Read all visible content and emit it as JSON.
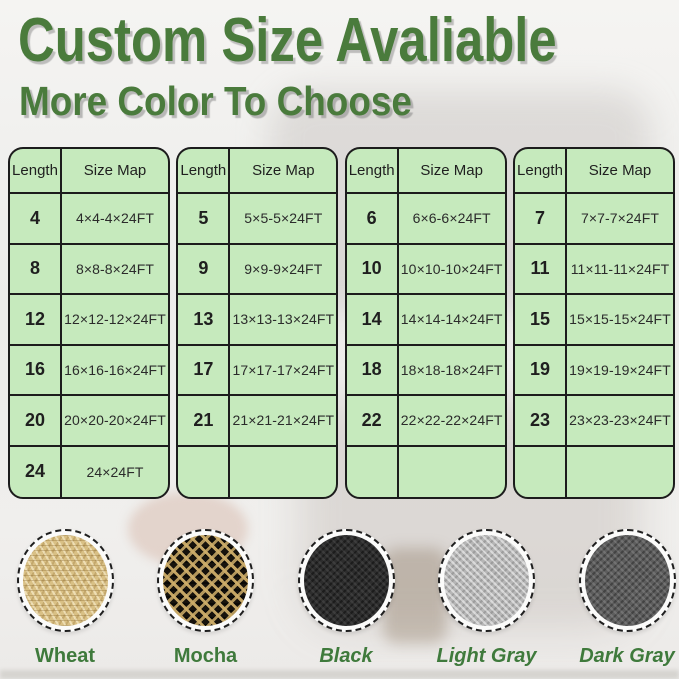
{
  "header": {
    "title": "Custom Size Avaliable",
    "subtitle": "More Color To Choose"
  },
  "size_tables": [
    {
      "columns": [
        "Length",
        "Size Map"
      ],
      "rows": [
        [
          "4",
          "4×4-4×24FT"
        ],
        [
          "8",
          "8×8-8×24FT"
        ],
        [
          "12",
          "12×12-12×24FT"
        ],
        [
          "16",
          "16×16-16×24FT"
        ],
        [
          "20",
          "20×20-20×24FT"
        ],
        [
          "24",
          "24×24FT"
        ]
      ]
    },
    {
      "columns": [
        "Length",
        "Size Map"
      ],
      "rows": [
        [
          "5",
          "5×5-5×24FT"
        ],
        [
          "9",
          "9×9-9×24FT"
        ],
        [
          "13",
          "13×13-13×24FT"
        ],
        [
          "17",
          "17×17-17×24FT"
        ],
        [
          "21",
          "21×21-21×24FT"
        ],
        [
          "",
          ""
        ]
      ]
    },
    {
      "columns": [
        "Length",
        "Size Map"
      ],
      "rows": [
        [
          "6",
          "6×6-6×24FT"
        ],
        [
          "10",
          "10×10-10×24FT"
        ],
        [
          "14",
          "14×14-14×24FT"
        ],
        [
          "18",
          "18×18-18×24FT"
        ],
        [
          "22",
          "22×22-22×24FT"
        ],
        [
          "",
          ""
        ]
      ]
    },
    {
      "columns": [
        "Length",
        "Size Map"
      ],
      "rows": [
        [
          "7",
          "7×7-7×24FT"
        ],
        [
          "11",
          "11×11-11×24FT"
        ],
        [
          "15",
          "15×15-15×24FT"
        ],
        [
          "19",
          "19×19-19×24FT"
        ],
        [
          "23",
          "23×23-23×24FT"
        ],
        [
          "",
          ""
        ]
      ]
    }
  ],
  "swatches": [
    {
      "label": "Wheat",
      "italic": false,
      "texture": "wheat",
      "base_color": "#d9c085"
    },
    {
      "label": "Mocha",
      "italic": false,
      "texture": "mocha",
      "base_color": "#17130d"
    },
    {
      "label": "Black",
      "italic": true,
      "texture": "black",
      "base_color": "#2d2d2d"
    },
    {
      "label": "Light Gray",
      "italic": true,
      "texture": "light-gray",
      "base_color": "#b6b6b6"
    },
    {
      "label": "Dark Gray",
      "italic": true,
      "texture": "dark-gray",
      "base_color": "#5d5d5d"
    }
  ],
  "colors": {
    "accent_green": "#4a7b3c",
    "label_green": "#3f7a3c",
    "table_background": "#c6eabd",
    "table_border": "#1c1c1c",
    "page_background": "#f0efed"
  }
}
